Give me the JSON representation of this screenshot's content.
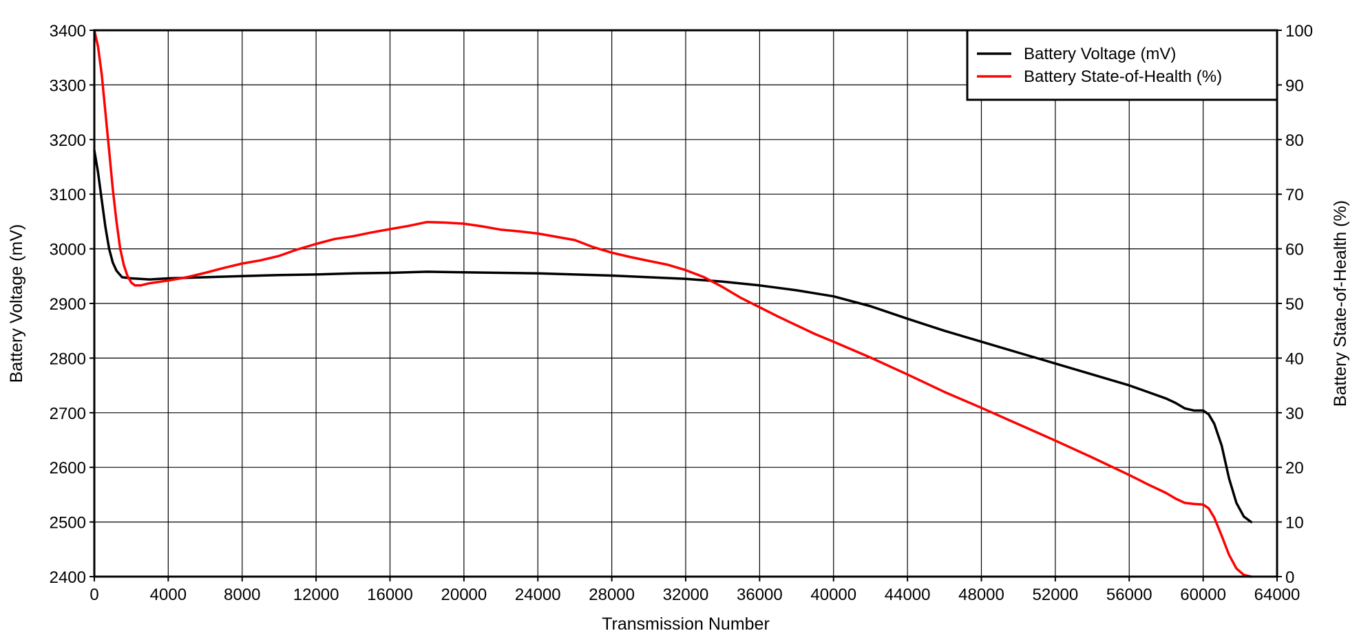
{
  "chart_data": {
    "type": "line",
    "title": "",
    "xlabel": "Transmission Number",
    "ylabel_left": "Battery Voltage (mV)",
    "ylabel_right": "Battery State-of-Health (%)",
    "xlim": [
      0,
      64000
    ],
    "ylim_left": [
      2400,
      3400
    ],
    "ylim_right": [
      0,
      100
    ],
    "x_ticks": [
      0,
      4000,
      8000,
      12000,
      16000,
      20000,
      24000,
      28000,
      32000,
      36000,
      40000,
      44000,
      48000,
      52000,
      56000,
      60000,
      64000
    ],
    "y_left_ticks": [
      2400,
      2500,
      2600,
      2700,
      2800,
      2900,
      3000,
      3100,
      3200,
      3300,
      3400
    ],
    "y_right_ticks": [
      0,
      10,
      20,
      30,
      40,
      50,
      60,
      70,
      80,
      90,
      100
    ],
    "grid": true,
    "legend_position": "top-right",
    "series": [
      {
        "name": "Battery Voltage (mV)",
        "axis": "left",
        "color": "#000000",
        "x": [
          0,
          200,
          400,
          600,
          800,
          1000,
          1200,
          1500,
          2000,
          3000,
          4000,
          6000,
          8000,
          10000,
          12000,
          14000,
          16000,
          18000,
          20000,
          22000,
          24000,
          26000,
          28000,
          30000,
          32000,
          34000,
          36000,
          38000,
          40000,
          42000,
          44000,
          46000,
          48000,
          50000,
          52000,
          54000,
          56000,
          57000,
          58000,
          58500,
          59000,
          59500,
          60000,
          60300,
          60600,
          61000,
          61400,
          61800,
          62200,
          62600
        ],
        "y": [
          3180,
          3140,
          3090,
          3040,
          3000,
          2975,
          2960,
          2948,
          2946,
          2944,
          2946,
          2948,
          2950,
          2952,
          2953,
          2955,
          2956,
          2958,
          2957,
          2956,
          2955,
          2953,
          2951,
          2948,
          2945,
          2940,
          2933,
          2924,
          2913,
          2895,
          2872,
          2850,
          2830,
          2810,
          2790,
          2770,
          2750,
          2738,
          2726,
          2718,
          2708,
          2704,
          2704,
          2697,
          2680,
          2640,
          2580,
          2535,
          2510,
          2500
        ]
      },
      {
        "name": "Battery State-of-Health (%)",
        "axis": "right",
        "color": "#ff0000",
        "x": [
          0,
          200,
          400,
          600,
          800,
          1000,
          1200,
          1400,
          1600,
          1800,
          2000,
          2200,
          2500,
          3000,
          4000,
          5000,
          6000,
          7000,
          8000,
          9000,
          10000,
          11000,
          12000,
          13000,
          14000,
          15000,
          16000,
          17000,
          18000,
          19000,
          20000,
          21000,
          22000,
          23000,
          24000,
          25000,
          26000,
          27000,
          28000,
          29000,
          30000,
          31000,
          32000,
          33000,
          34000,
          35000,
          36000,
          37000,
          38000,
          39000,
          40000,
          42000,
          44000,
          46000,
          48000,
          50000,
          52000,
          54000,
          56000,
          57000,
          58000,
          58500,
          59000,
          59500,
          60000,
          60300,
          60600,
          61000,
          61400,
          61800,
          62200,
          62600
        ],
        "y": [
          100,
          97,
          92,
          85,
          78,
          71,
          65,
          60,
          57,
          55,
          53.8,
          53.3,
          53.3,
          53.7,
          54.2,
          54.8,
          55.6,
          56.5,
          57.3,
          57.9,
          58.7,
          59.9,
          60.9,
          61.8,
          62.3,
          63.0,
          63.6,
          64.2,
          64.9,
          64.8,
          64.6,
          64.1,
          63.5,
          63.2,
          62.8,
          62.2,
          61.6,
          60.3,
          59.3,
          58.5,
          57.8,
          57.1,
          56.1,
          54.8,
          53.0,
          51.0,
          49.3,
          47.6,
          46.0,
          44.4,
          43.0,
          40.1,
          37.0,
          33.8,
          30.9,
          27.9,
          24.9,
          21.8,
          18.6,
          16.9,
          15.3,
          14.3,
          13.5,
          13.3,
          13.2,
          12.5,
          10.8,
          7.5,
          4.0,
          1.5,
          0.3,
          0
        ]
      }
    ]
  }
}
